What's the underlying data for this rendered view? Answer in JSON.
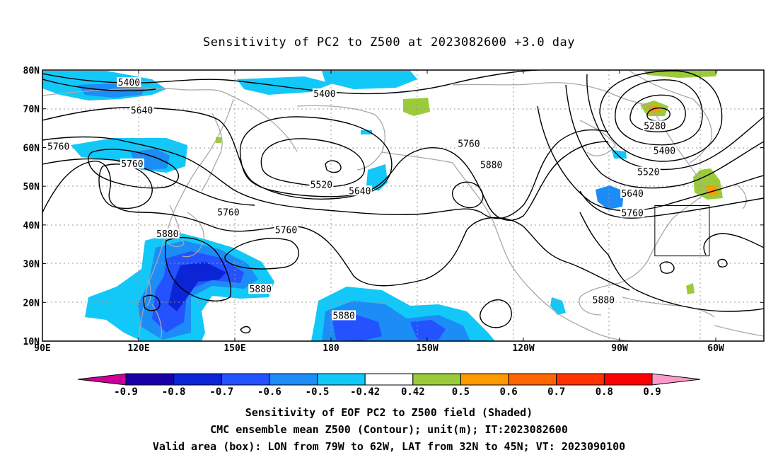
{
  "title": "Sensitivity of PC2 to Z500 at 2023082600 +3.0 day",
  "map": {
    "lon_labels": [
      "90E",
      "120E",
      "150E",
      "180",
      "150W",
      "120W",
      "90W",
      "60W"
    ],
    "lon_values": [
      90,
      120,
      150,
      180,
      210,
      240,
      270,
      300
    ],
    "lat_labels": [
      "10N",
      "20N",
      "30N",
      "40N",
      "50N",
      "60N",
      "70N",
      "80N"
    ],
    "lat_values": [
      10,
      20,
      30,
      40,
      50,
      60,
      70,
      80
    ],
    "lon_range": [
      90,
      315
    ],
    "lat_range": [
      10,
      80
    ],
    "grid": true,
    "valid_box": {
      "lon_min": 281,
      "lon_max": 298,
      "lat_min": 32,
      "lat_max": 45
    },
    "colors": {
      "neg_09": "#1800a8",
      "neg_08": "#0b24d6",
      "neg_07": "#2452ff",
      "neg_06": "#1c8cf6",
      "neg_05": "#12c8f8",
      "pos_05": "#9ccb3a",
      "pos_06": "#ff9900",
      "pos_07": "#ff6600",
      "pos_08": "#ff3300",
      "pos_09": "#ff0000",
      "under": "#cc0099",
      "over": "#ff99cc"
    },
    "contour_labels": [
      {
        "text": "5400",
        "lon": 117,
        "lat": 76.7
      },
      {
        "text": "5400",
        "lon": 178,
        "lat": 73.8
      },
      {
        "text": "5640",
        "lon": 121,
        "lat": 69.5
      },
      {
        "text": "5760",
        "lon": 95,
        "lat": 60.2
      },
      {
        "text": "5760",
        "lon": 118,
        "lat": 55.7
      },
      {
        "text": "5520",
        "lon": 177,
        "lat": 50.3
      },
      {
        "text": "5640",
        "lon": 189,
        "lat": 48.7
      },
      {
        "text": "5760",
        "lon": 148,
        "lat": 43.2
      },
      {
        "text": "5880",
        "lon": 129,
        "lat": 37.6
      },
      {
        "text": "5760",
        "lon": 223,
        "lat": 60.9
      },
      {
        "text": "5880",
        "lon": 230,
        "lat": 55.4
      },
      {
        "text": "5760",
        "lon": 166,
        "lat": 38.6
      },
      {
        "text": "5880",
        "lon": 184,
        "lat": 16.5
      },
      {
        "text": "5880",
        "lon": 158,
        "lat": 23.3
      },
      {
        "text": "5880",
        "lon": 265,
        "lat": 20.5
      },
      {
        "text": "5280",
        "lon": 281,
        "lat": 65.5
      },
      {
        "text": "5400",
        "lon": 284,
        "lat": 59.1
      },
      {
        "text": "5520",
        "lon": 279,
        "lat": 53.6
      },
      {
        "text": "5640",
        "lon": 274,
        "lat": 48.0
      },
      {
        "text": "5760",
        "lon": 274,
        "lat": 43.0
      }
    ]
  },
  "colorbar": {
    "labels": [
      "-0.9",
      "-0.8",
      "-0.7",
      "-0.6",
      "-0.5",
      "-0.42",
      "0.42",
      "0.5",
      "0.6",
      "0.7",
      "0.8",
      "0.9"
    ],
    "bins": [
      "#1800a8",
      "#0b24d6",
      "#2452ff",
      "#1c8cf6",
      "#12c8f8",
      "#ffffff",
      "#9ccb3a",
      "#ff9900",
      "#ff6600",
      "#ff3300",
      "#ff0000"
    ],
    "under_color": "#cc0099",
    "over_color": "#ff99cc"
  },
  "captions": {
    "line1": "Sensitivity of EOF PC2 to Z500 field (Shaded)",
    "line2": "CMC ensemble mean Z500 (Contour); unit(m); IT:2023082600",
    "line3": "Valid area (box): LON from 79W to 62W, LAT from 32N to 45N; VT: 2023090100"
  }
}
